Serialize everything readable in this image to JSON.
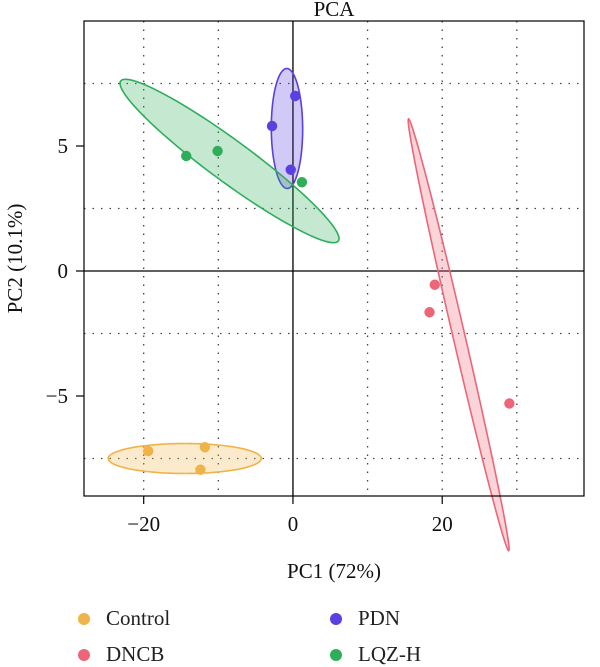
{
  "chart_data": {
    "type": "scatter",
    "title": "PCA",
    "xlabel": "PC1 (72%)",
    "ylabel": "PC2 (10.1%)",
    "xlim": [
      -28,
      39
    ],
    "ylim": [
      -9,
      10
    ],
    "xticks": [
      -20,
      0,
      20
    ],
    "xtick_labels": [
      "−20",
      "0",
      "20"
    ],
    "yticks": [
      -5,
      0,
      5
    ],
    "ytick_labels": [
      "−5",
      "0",
      "5"
    ],
    "grid": "dotted",
    "legend_position": "bottom",
    "series": [
      {
        "name": "Control",
        "color": "#F0B347",
        "points": [
          [
            -19.4,
            -7.2
          ],
          [
            -11.8,
            -7.05
          ],
          [
            -12.4,
            -7.95
          ]
        ],
        "ellipse": {
          "cx": -14.5,
          "cy": -7.5,
          "rx": 20.5,
          "ry": 1.2,
          "angle": 0
        }
      },
      {
        "name": "DNCB",
        "color": "#EC6677",
        "points": [
          [
            19.0,
            -0.55
          ],
          [
            18.3,
            -1.65
          ],
          [
            29.0,
            -5.3
          ]
        ],
        "ellipse": {
          "cx": 22.2,
          "cy": -2.55,
          "rx": 21.9,
          "ry": 1.3,
          "angle": -52
        }
      },
      {
        "name": "PDN",
        "color": "#5B3FE0",
        "points": [
          [
            0.3,
            7.0
          ],
          [
            -2.8,
            5.8
          ],
          [
            -0.3,
            4.05
          ]
        ],
        "ellipse": {
          "cx": -0.8,
          "cy": 5.7,
          "rx": 4.8,
          "ry": 4.2,
          "angle": -87
        }
      },
      {
        "name": "LQZ-H",
        "color": "#2EAE5A",
        "points": [
          [
            -14.3,
            4.6
          ],
          [
            -10.1,
            4.8
          ],
          [
            1.2,
            3.55
          ]
        ],
        "ellipse": {
          "cx": -8.5,
          "cy": 4.4,
          "rx": 30,
          "ry": 2.0,
          "angle": -12
        }
      }
    ]
  }
}
